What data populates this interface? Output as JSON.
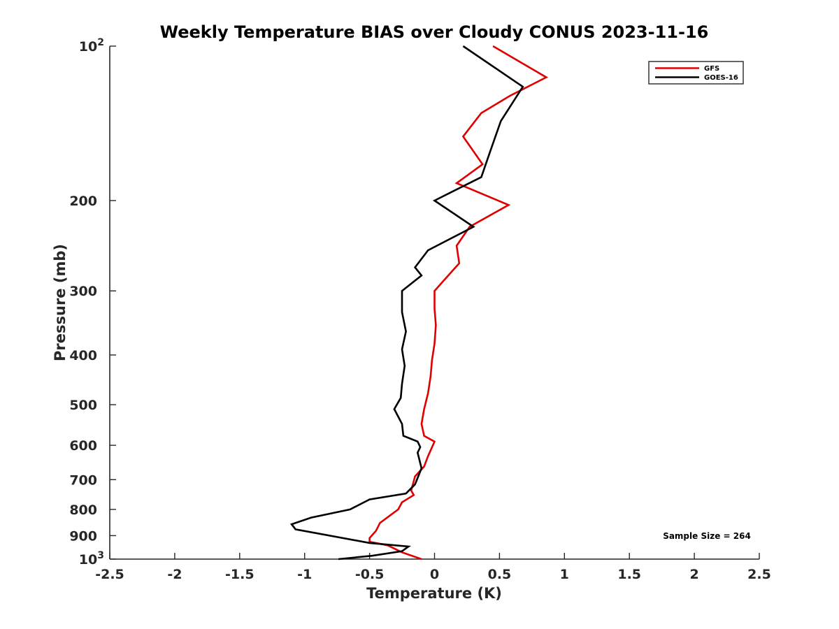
{
  "chart_data": {
    "type": "line",
    "title": "Weekly Temperature BIAS over Cloudy CONUS 2023-11-16",
    "xlabel": "Temperature (K)",
    "ylabel": "Pressure (mb)",
    "xlim": [
      -2.5,
      2.5
    ],
    "ylim": [
      100,
      1000
    ],
    "y_scale": "log",
    "y_reversed": true,
    "x_ticks": [
      "-2.5",
      "-2",
      "-1.5",
      "-1",
      "-0.5",
      "0",
      "0.5",
      "1",
      "1.5",
      "2",
      "2.5"
    ],
    "x_tick_values": [
      -2.5,
      -2,
      -1.5,
      -1,
      -0.5,
      0,
      0.5,
      1,
      1.5,
      2,
      2.5
    ],
    "y_ticks": [
      {
        "value": 100,
        "label": "10",
        "sup": "2"
      },
      {
        "value": 200,
        "label": "200"
      },
      {
        "value": 300,
        "label": "300"
      },
      {
        "value": 400,
        "label": "400"
      },
      {
        "value": 500,
        "label": "500"
      },
      {
        "value": 600,
        "label": "600"
      },
      {
        "value": 700,
        "label": "700"
      },
      {
        "value": 800,
        "label": "800"
      },
      {
        "value": 900,
        "label": "900"
      },
      {
        "value": 1000,
        "label": "10",
        "sup": "3"
      }
    ],
    "grid": false,
    "legend_position": "top-right",
    "annotation": "Sample Size = 264",
    "series": [
      {
        "name": "GFS",
        "color": "#e00000",
        "x": [
          0.45,
          0.86,
          0.58,
          0.36,
          0.22,
          0.37,
          0.17,
          0.57,
          0.27,
          0.17,
          0.19,
          0.0,
          0.0,
          0.01,
          0.0,
          -0.02,
          -0.03,
          -0.05,
          -0.08,
          -0.1,
          -0.08,
          0.0,
          -0.05,
          -0.08,
          -0.15,
          -0.18,
          -0.16,
          -0.25,
          -0.28,
          -0.42,
          -0.45,
          -0.5,
          -0.5,
          -0.36,
          -0.25,
          -0.1
        ],
        "y": [
          100,
          115,
          125,
          135,
          150,
          170,
          185,
          204,
          225,
          245,
          265,
          300,
          325,
          350,
          380,
          410,
          440,
          475,
          510,
          545,
          575,
          590,
          630,
          660,
          690,
          735,
          750,
          775,
          800,
          850,
          880,
          910,
          925,
          940,
          970,
          1000
        ]
      },
      {
        "name": "GOES-16",
        "color": "#000000",
        "x": [
          0.22,
          0.68,
          0.51,
          0.43,
          0.36,
          0.0,
          0.3,
          -0.05,
          -0.15,
          -0.1,
          -0.25,
          -0.25,
          -0.22,
          -0.25,
          -0.23,
          -0.25,
          -0.26,
          -0.31,
          -0.25,
          -0.24,
          -0.13,
          -0.11,
          -0.13,
          -0.1,
          -0.15,
          -0.22,
          -0.5,
          -0.65,
          -0.95,
          -1.1,
          -1.07,
          -0.5,
          -0.2,
          -0.25,
          -0.48,
          -0.74
        ],
        "y": [
          100,
          120,
          140,
          160,
          180,
          200,
          225,
          250,
          270,
          280,
          300,
          330,
          360,
          390,
          420,
          455,
          485,
          510,
          545,
          575,
          590,
          605,
          620,
          665,
          715,
          745,
          765,
          800,
          830,
          855,
          875,
          930,
          945,
          965,
          985,
          1000
        ]
      }
    ]
  }
}
